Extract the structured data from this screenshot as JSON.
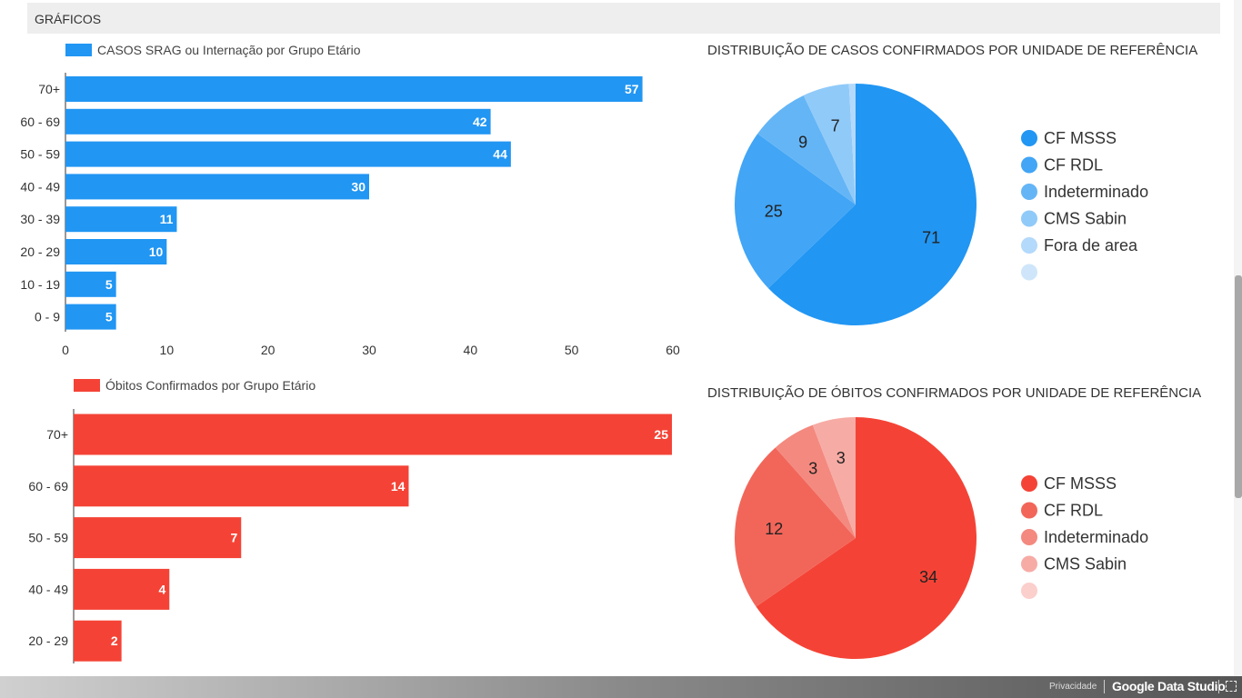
{
  "header": {
    "title": "GRÁFICOS"
  },
  "footer": {
    "privacy": "Privacidade",
    "brand": "Google Data Studio"
  },
  "chart_data": [
    {
      "type": "bar",
      "orientation": "horizontal",
      "title": "CASOS SRAG ou Internação por Grupo Etário",
      "legend": "CASOS SRAG ou Internação por Grupo Etário",
      "color": "#2196f3",
      "categories": [
        "70+",
        "60 - 69",
        "50 - 59",
        "40 - 49",
        "30 - 39",
        "20 - 29",
        "10 - 19",
        "0 - 9"
      ],
      "values": [
        57,
        42,
        44,
        30,
        11,
        10,
        5,
        5
      ],
      "xlim": [
        0,
        60
      ],
      "xticks": [
        "0",
        "10",
        "20",
        "30",
        "40",
        "50",
        "60"
      ]
    },
    {
      "type": "pie",
      "title": "DISTRIBUIÇÃO DE CASOS CONFIRMADOS POR UNIDADE DE REFERÊNCIA",
      "labels": [
        "CF MSSS",
        "CF RDL",
        "Indeterminado",
        "CMS Sabin",
        "Fora de area",
        ""
      ],
      "values": [
        71,
        25,
        9,
        7,
        1,
        0
      ],
      "colors": [
        "#2196f3",
        "#42a5f5",
        "#64b5f6",
        "#90caf9",
        "#b3d9fb",
        "#cfe6fa"
      ]
    },
    {
      "type": "bar",
      "orientation": "horizontal",
      "title": "Óbitos Confirmados por Grupo Etário",
      "legend": "Óbitos Confirmados por Grupo Etário",
      "color": "#f44336",
      "categories": [
        "70+",
        "60 - 69",
        "50 - 59",
        "40 - 49",
        "20 - 29"
      ],
      "values": [
        25,
        14,
        7,
        4,
        2
      ],
      "xlim": [
        0,
        25
      ],
      "xticks": [
        "0",
        "5",
        "10",
        "15",
        "20",
        "25"
      ]
    },
    {
      "type": "pie",
      "title": "DISTRIBUIÇÃO DE ÓBITOS CONFIRMADOS POR UNIDADE DE REFERÊNCIA",
      "labels": [
        "CF MSSS",
        "CF RDL",
        "Indeterminado",
        "CMS Sabin",
        ""
      ],
      "values": [
        34,
        12,
        3,
        3,
        0
      ],
      "colors": [
        "#f44336",
        "#f2665a",
        "#f4897f",
        "#f7aba5",
        "#fbcfcc"
      ]
    }
  ]
}
